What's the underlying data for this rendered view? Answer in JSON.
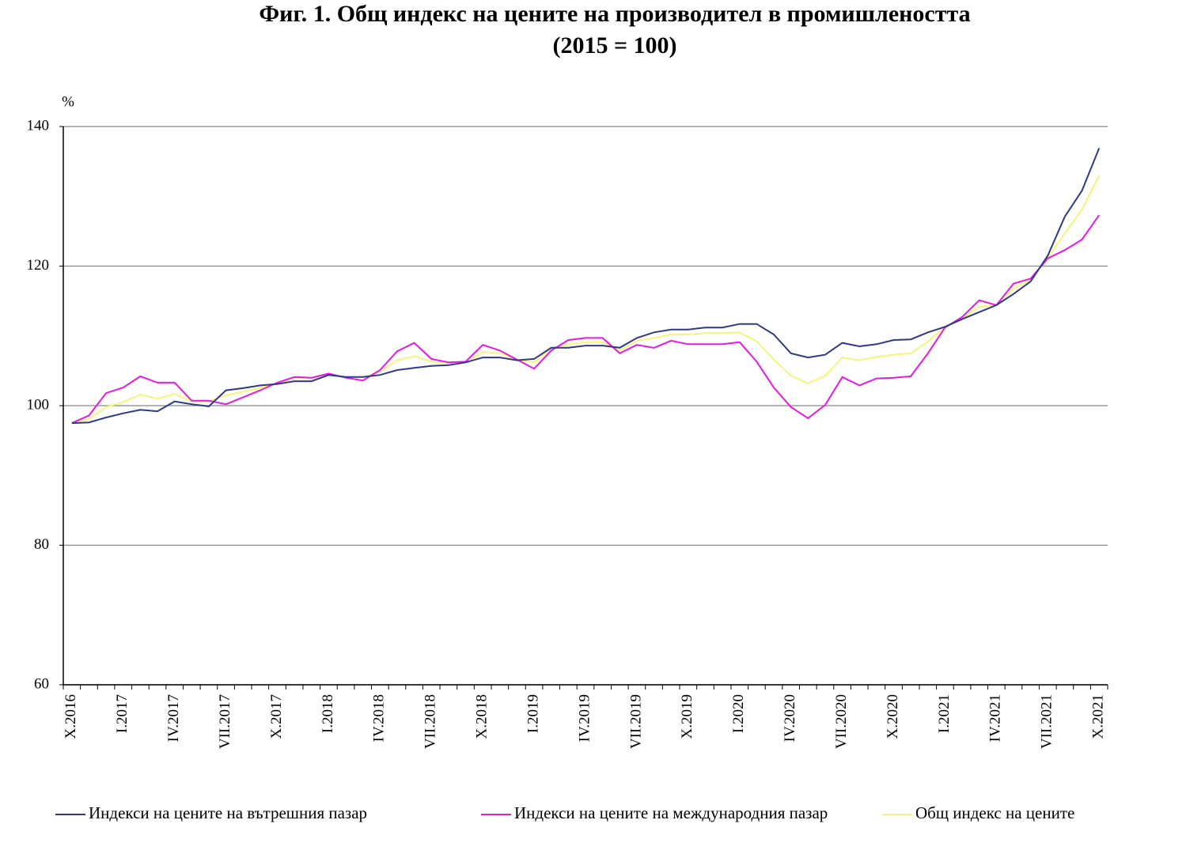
{
  "chart_data": {
    "type": "line",
    "title": "Фиг. 1. Общ индекс на цените на производител в промишлеността",
    "subtitle": "(2015 = 100)",
    "y_label": "%",
    "categories": [
      "X.2016",
      null,
      null,
      "I.2017",
      null,
      null,
      "IV.2017",
      null,
      null,
      "VII.2017",
      null,
      null,
      "X.2017",
      null,
      null,
      "I.2018",
      null,
      null,
      "IV.2018",
      null,
      null,
      "VII.2018",
      null,
      null,
      "X.2018",
      null,
      null,
      "I.2019",
      null,
      null,
      "IV.2019",
      null,
      null,
      "VII.2019",
      null,
      null,
      "X.2019",
      null,
      null,
      "I.2020",
      null,
      null,
      "IV.2020",
      null,
      null,
      "VII.2020",
      null,
      null,
      "X.2020",
      null,
      null,
      "I.2021",
      null,
      null,
      "IV.2021",
      null,
      null,
      "VII.2021",
      null,
      null,
      "X.2021"
    ],
    "series": [
      {
        "name": "Индекси на цените на вътрешния пазар",
        "color": "#2e3a87",
        "values": [
          97.5,
          97.6,
          98.3,
          98.9,
          99.4,
          99.2,
          100.6,
          100.2,
          99.9,
          102.2,
          102.5,
          102.9,
          103.1,
          103.5,
          103.5,
          104.4,
          104.1,
          104.1,
          104.4,
          105.1,
          105.4,
          105.7,
          105.8,
          106.2,
          106.9,
          106.9,
          106.5,
          106.7,
          108.3,
          108.3,
          108.6,
          108.6,
          108.3,
          109.7,
          110.5,
          110.9,
          110.9,
          111.2,
          111.2,
          111.7,
          111.7,
          110.2,
          107.5,
          106.9,
          107.3,
          109.0,
          108.5,
          108.8,
          109.4,
          109.5,
          110.5,
          111.3,
          112.4,
          113.4,
          114.4,
          116.0,
          117.8,
          121.5,
          127.1,
          130.8,
          136.9
        ]
      },
      {
        "name": "Индекси на цените на международния пазар",
        "color": "#e619e6",
        "values": [
          97.5,
          98.6,
          101.8,
          102.6,
          104.2,
          103.3,
          103.3,
          100.7,
          100.7,
          100.2,
          101.2,
          102.2,
          103.3,
          104.1,
          104.0,
          104.6,
          104.0,
          103.6,
          105.1,
          107.8,
          109.0,
          106.7,
          106.2,
          106.3,
          108.7,
          107.9,
          106.6,
          105.3,
          107.9,
          109.4,
          109.7,
          109.7,
          107.5,
          108.7,
          108.3,
          109.3,
          108.8,
          108.8,
          108.8,
          109.1,
          106.3,
          102.6,
          99.8,
          98.2,
          100.1,
          104.1,
          102.9,
          103.9,
          104.0,
          104.2,
          107.5,
          111.2,
          112.7,
          115.1,
          114.4,
          117.5,
          118.2,
          121.1,
          122.3,
          123.8,
          127.3
        ]
      },
      {
        "name": "Общ индекс на цените",
        "color": "#f5f57a",
        "values": [
          97.5,
          98.1,
          99.8,
          100.5,
          101.6,
          101.0,
          101.7,
          100.6,
          100.6,
          101.5,
          102.0,
          102.6,
          103.2,
          103.9,
          103.9,
          104.5,
          104.1,
          104.0,
          104.9,
          106.5,
          107.1,
          106.3,
          106.1,
          106.2,
          107.7,
          107.5,
          106.6,
          106.2,
          108.2,
          108.8,
          109.1,
          109.1,
          107.9,
          109.3,
          109.7,
          110.2,
          110.2,
          110.4,
          110.4,
          110.5,
          109.2,
          106.6,
          104.3,
          103.2,
          104.3,
          106.9,
          106.5,
          107.0,
          107.3,
          107.5,
          109.2,
          111.3,
          112.5,
          114.2,
          114.4,
          116.8,
          118.0,
          121.2,
          124.7,
          128.1,
          133.0
        ]
      }
    ],
    "ylim": [
      60,
      140
    ],
    "yticks": [
      60,
      80,
      100,
      120,
      140
    ],
    "grid": true
  }
}
